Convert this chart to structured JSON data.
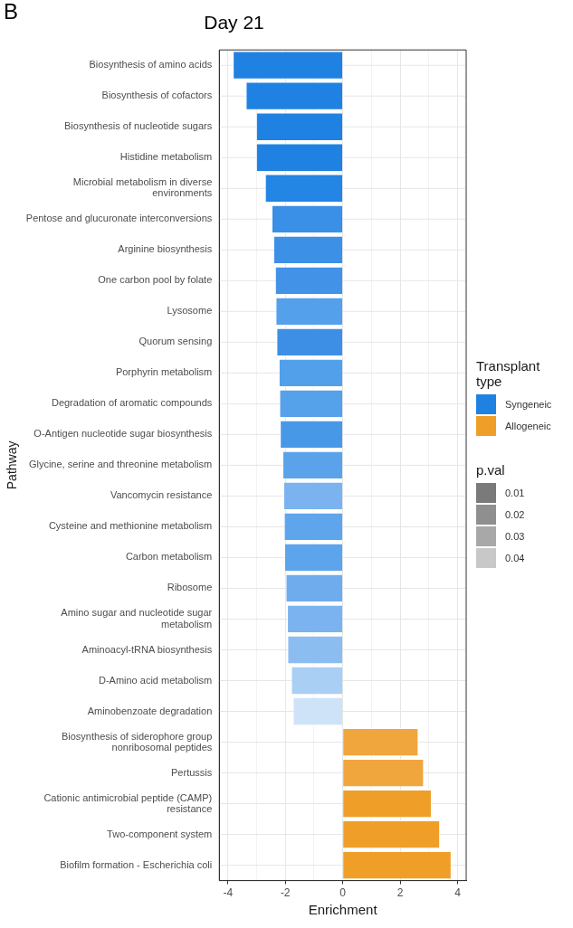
{
  "chart_data": {
    "type": "bar",
    "orientation": "horizontal",
    "title": "Day 21",
    "xlabel": "Enrichment",
    "ylabel": "Pathway",
    "legend_title": "Transplant type",
    "legend": "right",
    "grid": true,
    "categories": [
      "Biosynthesis of amino acids",
      "Biosynthesis of cofactors",
      "Biosynthesis of nucleotide sugars",
      "Histidine metabolism",
      "Microbial metabolism in diverse\nenvironments",
      "Pentose and glucuronate interconversions",
      "Arginine biosynthesis",
      "One carbon pool by folate",
      "Lysosome",
      "Quorum sensing",
      "Porphyrin metabolism",
      "Degradation of aromatic compounds",
      "O-Antigen nucleotide sugar biosynthesis",
      "Glycine, serine and threonine metabolism",
      "Vancomycin resistance",
      "Cysteine and methionine metabolism",
      "Carbon metabolism",
      "Ribosome",
      "Amino sugar and nucleotide sugar\nmetabolism",
      "Aminoacyl-tRNA biosynthesis",
      "D-Amino acid metabolism",
      "Aminobenzoate degradation",
      "Biosynthesis of siderophore group\nnonribosomal peptides",
      "Pertussis",
      "Cationic antimicrobial peptide (CAMP)\nresistance",
      "Two-component system",
      "Biofilm formation - Escherichia coli"
    ],
    "series": [
      {
        "name": "Syngeneic",
        "color": "#1f82e3",
        "values": [
          -3.83,
          -3.38,
          -3.02,
          -3.02,
          -2.71,
          -2.48,
          -2.42,
          -2.36,
          -2.34,
          -2.31,
          -2.23,
          -2.21,
          -2.19,
          -2.1,
          -2.07,
          -2.05,
          -2.04,
          -1.99,
          -1.94,
          -1.93,
          -1.8,
          -1.74,
          null,
          null,
          null,
          null,
          null
        ],
        "colors": [
          "#1f82e3",
          "#1f82e3",
          "#1f82e3",
          "#1f82e3",
          "#2385e4",
          "#3a8fe6",
          "#3c90e6",
          "#4292e7",
          "#54a0ea",
          "#3d8fe6",
          "#52a0ea",
          "#55a1ea",
          "#4898e8",
          "#5aa3eb",
          "#7ab3ef",
          "#5ea5eb",
          "#5ca4eb",
          "#6eacee",
          "#7ab3ef",
          "#8cbdf1",
          "#aacff4",
          "#cfe3f8",
          null,
          null,
          null,
          null,
          null
        ]
      },
      {
        "name": "Allogeneic",
        "color": "#ef9f28",
        "values": [
          null,
          null,
          null,
          null,
          null,
          null,
          null,
          null,
          null,
          null,
          null,
          null,
          null,
          null,
          null,
          null,
          null,
          null,
          null,
          null,
          null,
          null,
          2.64,
          2.83,
          3.1,
          3.39,
          3.79
        ],
        "colors": [
          null,
          null,
          null,
          null,
          null,
          null,
          null,
          null,
          null,
          null,
          null,
          null,
          null,
          null,
          null,
          null,
          null,
          null,
          null,
          null,
          null,
          null,
          "#f0a63c",
          "#f0a63c",
          "#ef9f28",
          "#ef9f28",
          "#ef9f28"
        ]
      }
    ],
    "xlim": [
      -4.3,
      4.3
    ],
    "xticks": [
      -4,
      {
        "value": -3,
        "label": null
      },
      -2,
      {
        "value": -1,
        "label": null
      },
      0,
      {
        "value": 1,
        "label": null
      },
      2,
      {
        "value": 3,
        "label": null
      },
      4
    ],
    "annotations": [
      "B",
      "p.val",
      "0.01",
      "0.02",
      "0.03",
      "0.04"
    ]
  }
}
